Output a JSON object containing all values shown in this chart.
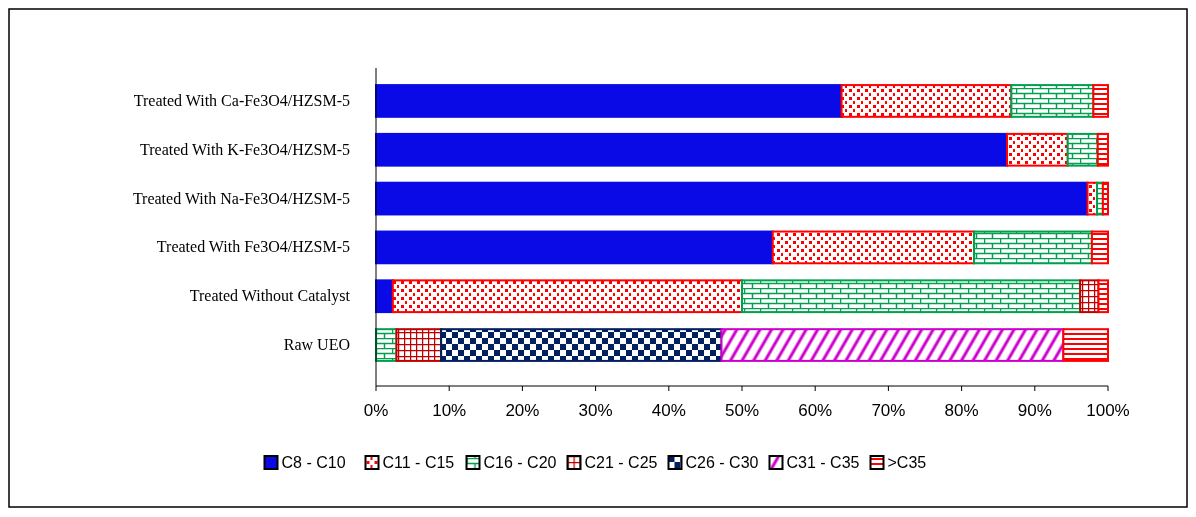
{
  "chart_data": {
    "type": "bar",
    "orientation": "horizontal",
    "stacked": true,
    "categories": [
      "Treated With Ca-Fe3O4/HZSM-5",
      "Treated With K-Fe3O4/HZSM-5",
      "Treated With Na-Fe3O4/HZSM-5",
      "Treated With Fe3O4/HZSM-5",
      "Treated Without Catalyst",
      "Raw UEO"
    ],
    "series": [
      {
        "name": "C8 - C10",
        "color": "#0a0ae6",
        "values": [
          63.6,
          86.2,
          97.2,
          54.2,
          2.3,
          0
        ]
      },
      {
        "name": "C11 - C15",
        "color": "#ff0000",
        "values": [
          23.2,
          8.3,
          1.3,
          27.5,
          47.7,
          0
        ]
      },
      {
        "name": "C16 - C20",
        "color": "#00a050",
        "values": [
          11.2,
          4.1,
          0.8,
          16.1,
          46.2,
          2.8
        ]
      },
      {
        "name": "C21 - C25",
        "color": "#c00000",
        "values": [
          0,
          0,
          0,
          0,
          2.5,
          6.1
        ]
      },
      {
        "name": "C26 - C30",
        "color": "#002060",
        "values": [
          0,
          0,
          0,
          0,
          0,
          38.3
        ]
      },
      {
        "name": "C31 - C35",
        "color": "#cc00cc",
        "values": [
          0,
          0,
          0,
          0,
          0,
          46.7
        ]
      },
      {
        "name": ">C35",
        "color": "#ff0000",
        "values": [
          2.0,
          1.4,
          0.7,
          2.2,
          1.3,
          6.1
        ]
      }
    ],
    "xlim": [
      0,
      100
    ],
    "xticks": [
      {
        "value": 0,
        "label": "0%"
      },
      {
        "value": 10,
        "label": "10%"
      },
      {
        "value": 20,
        "label": "20%"
      },
      {
        "value": 30,
        "label": "30%"
      },
      {
        "value": 40,
        "label": "40%"
      },
      {
        "value": 50,
        "label": "50%"
      },
      {
        "value": 60,
        "label": "60%"
      },
      {
        "value": 70,
        "label": "70%"
      },
      {
        "value": 80,
        "label": "80%"
      },
      {
        "value": 90,
        "label": "90%"
      },
      {
        "value": 100,
        "label": "100%"
      }
    ],
    "legend": "bottom",
    "grid": false
  }
}
